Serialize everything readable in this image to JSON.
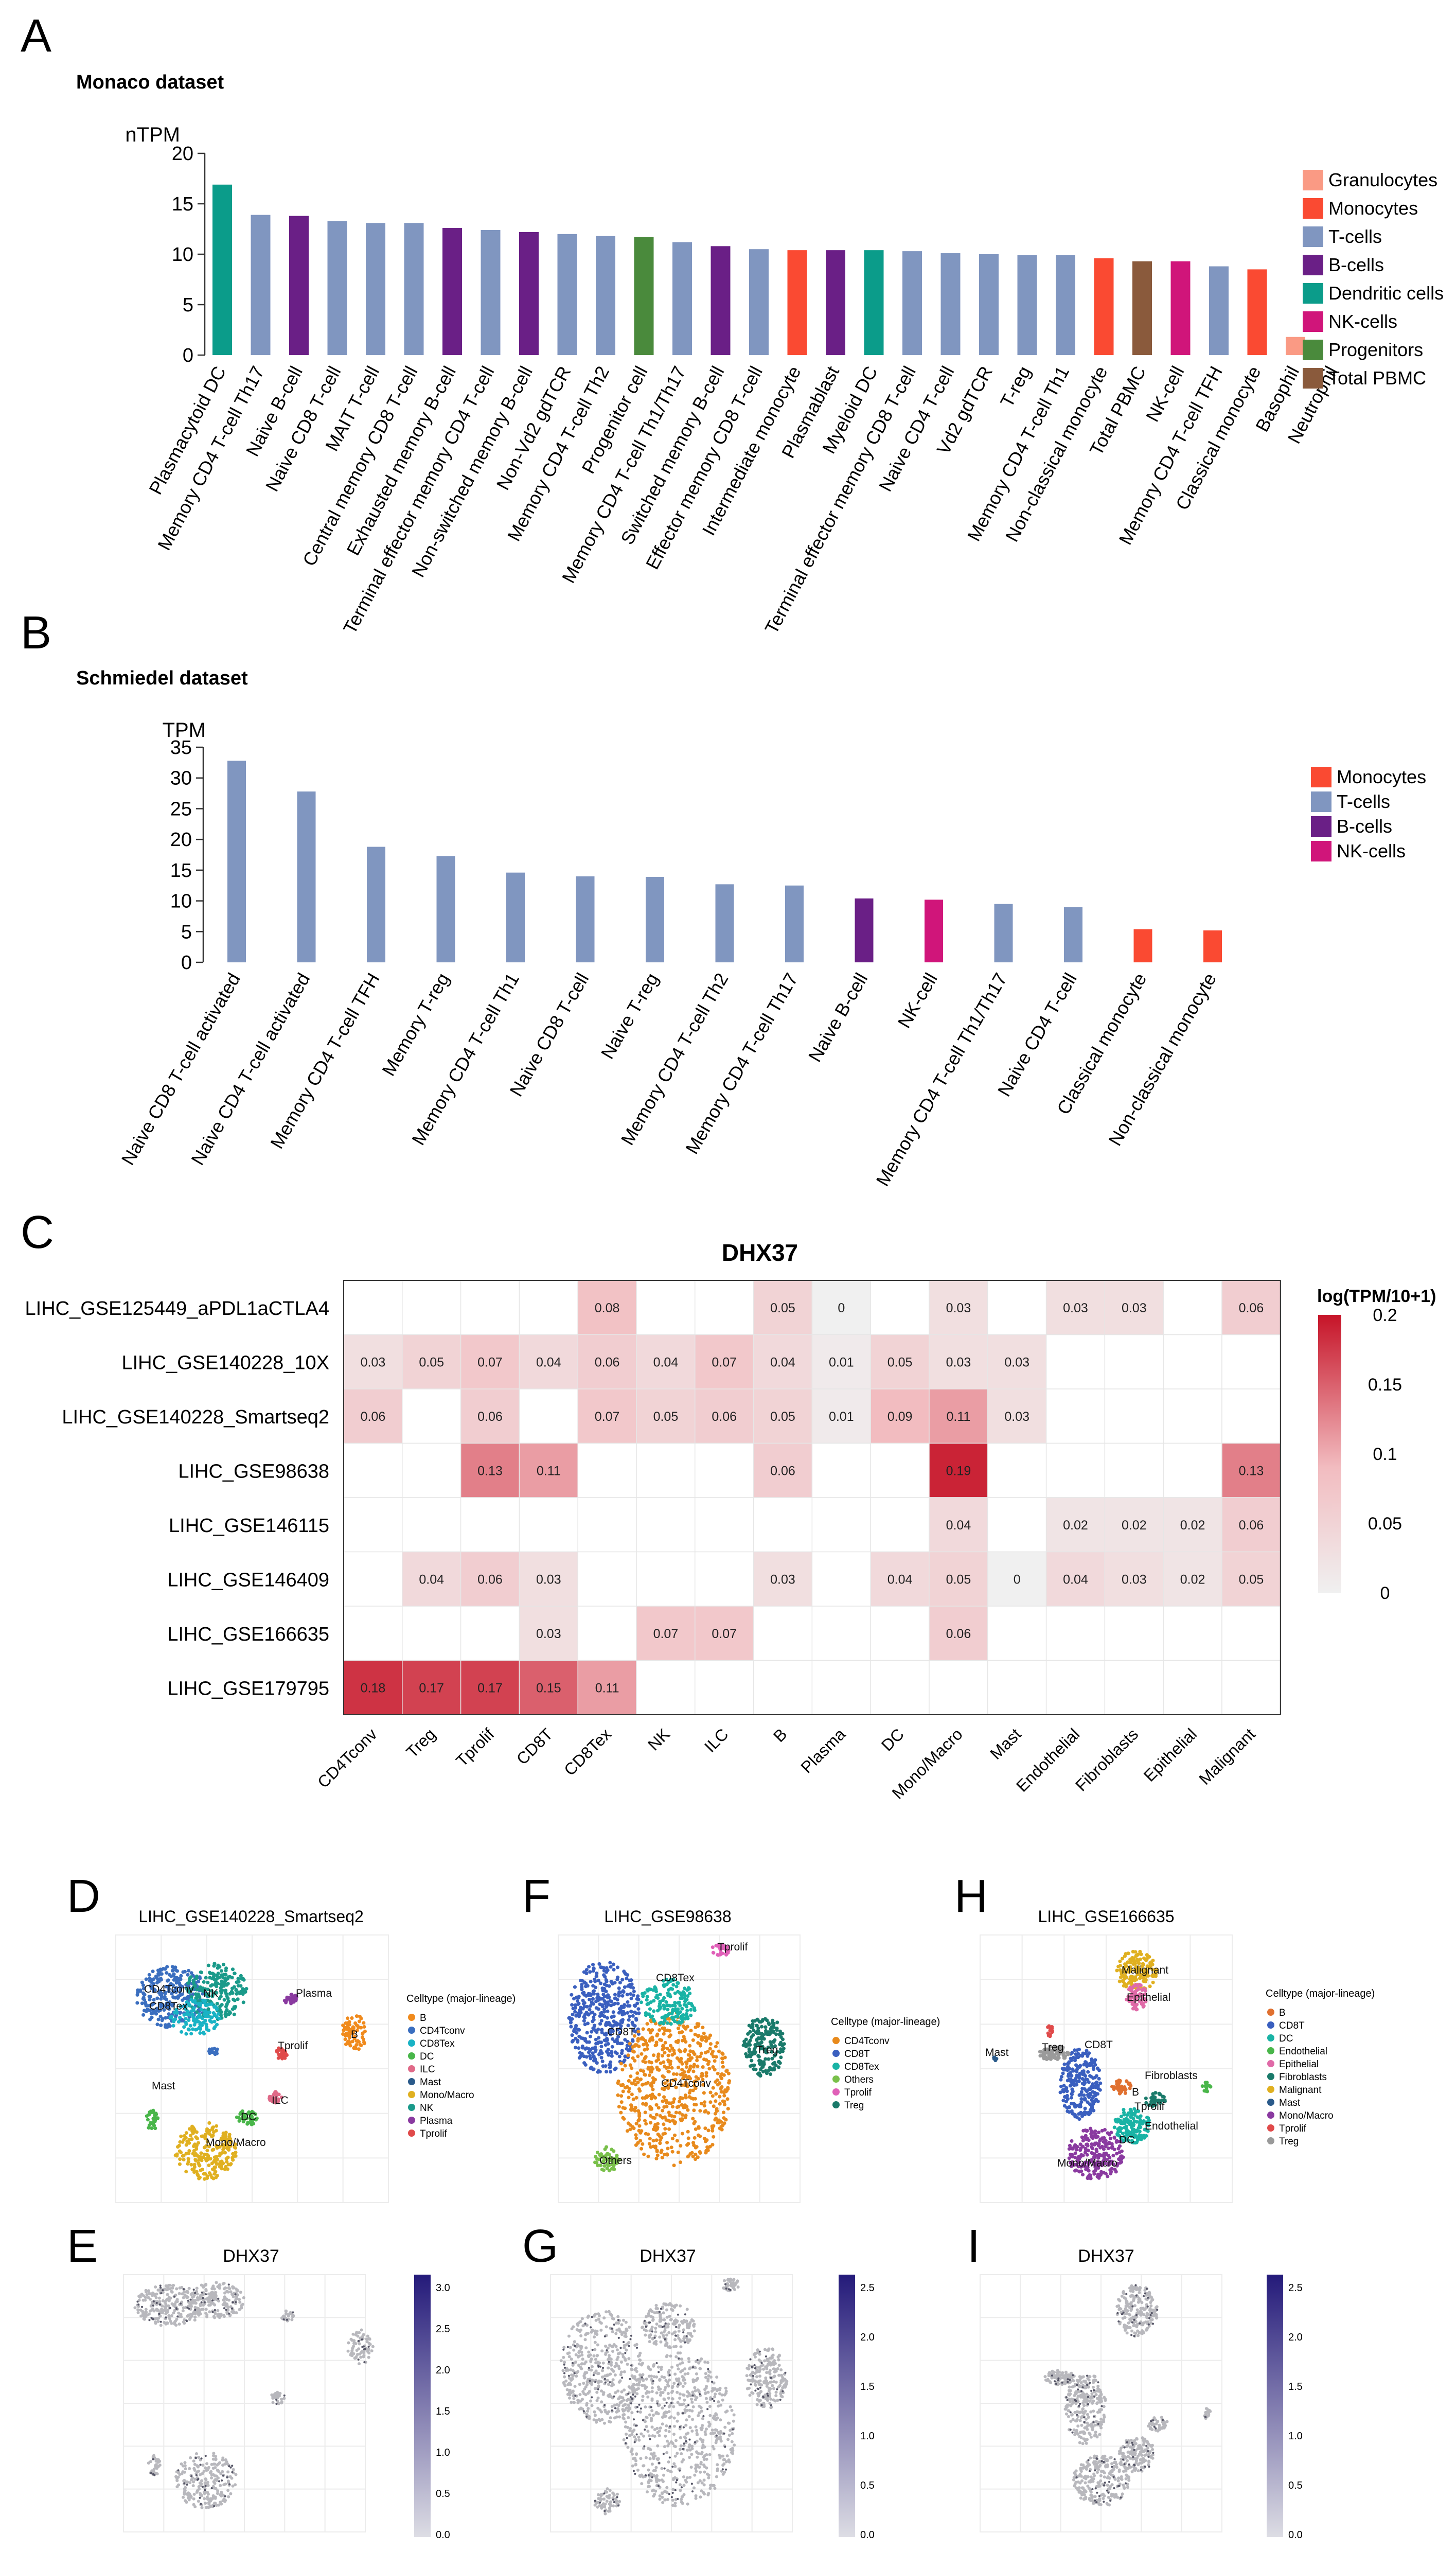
{
  "colors": {
    "Granulocytes": "#fa9a84",
    "Monocytes": "#fa4a32",
    "T-cells": "#8096c0",
    "B-cells": "#6a1f86",
    "Dendritic cells": "#0b9c8a",
    "NK-cells": "#d0157a",
    "Progenitors": "#4a8a3c",
    "Total PBMC": "#8a5a3c"
  },
  "panels": {
    "A": "A",
    "B": "B",
    "C": "C",
    "D": "D",
    "E": "E",
    "F": "F",
    "G": "G",
    "H": "H",
    "I": "I"
  },
  "chart_data": [
    {
      "id": "A",
      "type": "bar",
      "title": "Monaco dataset",
      "ylabel": "nTPM",
      "ylim": [
        0,
        20
      ],
      "yticks": [
        0,
        5,
        10,
        15,
        20
      ],
      "legend": [
        "Granulocytes",
        "Monocytes",
        "T-cells",
        "B-cells",
        "Dendritic cells",
        "NK-cells",
        "Progenitors",
        "Total PBMC"
      ],
      "categories": [
        "Plasmacytoid DC",
        "Memory CD4 T-cell Th17",
        "Naive B-cell",
        "Naive CD8 T-cell",
        "MAIT T-cell",
        "Central memory CD8 T-cell",
        "Exhausted memory B-cell",
        "Terminal effector memory CD4 T-cell",
        "Non-switched memory B-cell",
        "Non-Vd2 gdTCR",
        "Memory CD4 T-cell Th2",
        "Progenitor cell",
        "Memory CD4 T-cell Th1/Th17",
        "Switched memory B-cell",
        "Effector memory CD8 T-cell",
        "Intermediate monocyte",
        "Plasmablast",
        "Myeloid DC",
        "Terminal effector memory CD8 T-cell",
        "Naive CD4 T-cell",
        "Vd2 gdTCR",
        "T-reg",
        "Memory CD4 T-cell Th1",
        "Non-classical monocyte",
        "Total PBMC",
        "NK-cell",
        "Memory CD4 T-cell TFH",
        "Classical monocyte",
        "Basophil",
        "Neutrophil"
      ],
      "values": [
        16.9,
        13.9,
        13.8,
        13.3,
        13.1,
        13.1,
        12.6,
        12.4,
        12.2,
        12.0,
        11.8,
        11.7,
        11.2,
        10.8,
        10.5,
        10.4,
        10.4,
        10.4,
        10.3,
        10.1,
        10.0,
        9.9,
        9.9,
        9.6,
        9.3,
        9.3,
        8.8,
        8.5,
        1.8,
        0.0
      ],
      "groups": [
        "Dendritic cells",
        "T-cells",
        "B-cells",
        "T-cells",
        "T-cells",
        "T-cells",
        "B-cells",
        "T-cells",
        "B-cells",
        "T-cells",
        "T-cells",
        "Progenitors",
        "T-cells",
        "B-cells",
        "T-cells",
        "Monocytes",
        "B-cells",
        "Dendritic cells",
        "T-cells",
        "T-cells",
        "T-cells",
        "T-cells",
        "T-cells",
        "Monocytes",
        "Total PBMC",
        "NK-cells",
        "T-cells",
        "Monocytes",
        "Granulocytes",
        "Granulocytes"
      ]
    },
    {
      "id": "B",
      "type": "bar",
      "title": "Schmiedel dataset",
      "ylabel": "TPM",
      "ylim": [
        0,
        35
      ],
      "yticks": [
        0,
        5,
        10,
        15,
        20,
        25,
        30,
        35
      ],
      "legend": [
        "Monocytes",
        "T-cells",
        "B-cells",
        "NK-cells"
      ],
      "categories": [
        "Naive CD8 T-cell activated",
        "Naive CD4 T-cell activated",
        "Memory CD4 T-cell TFH",
        "Memory T-reg",
        "Memory CD4 T-cell Th1",
        "Naive CD8 T-cell",
        "Naive T-reg",
        "Memory CD4 T-cell Th2",
        "Memory CD4 T-cell Th17",
        "Naive B-cell",
        "NK-cell",
        "Memory CD4 T-cell Th1/Th17",
        "Naive CD4 T-cell",
        "Classical monocyte",
        "Non-classical monocyte"
      ],
      "values": [
        32.8,
        27.8,
        18.8,
        17.3,
        14.6,
        14.0,
        13.9,
        12.7,
        12.5,
        10.4,
        10.2,
        9.5,
        9.0,
        5.4,
        5.2
      ],
      "groups": [
        "T-cells",
        "T-cells",
        "T-cells",
        "T-cells",
        "T-cells",
        "T-cells",
        "T-cells",
        "T-cells",
        "T-cells",
        "B-cells",
        "NK-cells",
        "T-cells",
        "T-cells",
        "Monocytes",
        "Monocytes"
      ]
    },
    {
      "id": "C",
      "type": "heatmap",
      "title": "DHX37",
      "legend_title": "log(TPM/10+1)",
      "legend_ticks": [
        "0.2",
        "0.15",
        "0.1",
        "0.05",
        "0"
      ],
      "vmax": 0.2,
      "rows": [
        "LIHC_GSE125449_aPDL1aCTLA4",
        "LIHC_GSE140228_10X",
        "LIHC_GSE140228_Smartseq2",
        "LIHC_GSE98638",
        "LIHC_GSE146115",
        "LIHC_GSE146409",
        "LIHC_GSE166635",
        "LIHC_GSE179795"
      ],
      "columns": [
        "CD4Tconv",
        "Treg",
        "Tprolif",
        "CD8T",
        "CD8Tex",
        "NK",
        "ILC",
        "B",
        "Plasma",
        "DC",
        "Mono/Macro",
        "Mast",
        "Endothelial",
        "Fibroblasts",
        "Epithelial",
        "Malignant"
      ],
      "values": [
        [
          null,
          null,
          null,
          null,
          0.08,
          null,
          null,
          0.05,
          0,
          null,
          0.03,
          null,
          0.03,
          0.03,
          null,
          0.06
        ],
        [
          0.03,
          0.05,
          0.07,
          0.04,
          0.06,
          0.04,
          0.07,
          0.04,
          0.01,
          0.05,
          0.03,
          0.03,
          null,
          null,
          null,
          null
        ],
        [
          0.06,
          null,
          0.06,
          null,
          0.07,
          0.05,
          0.06,
          0.05,
          0.01,
          0.09,
          0.11,
          0.03,
          null,
          null,
          null,
          null
        ],
        [
          null,
          null,
          0.13,
          0.11,
          null,
          null,
          null,
          0.06,
          null,
          null,
          0.19,
          null,
          null,
          null,
          null,
          0.13
        ],
        [
          null,
          null,
          null,
          null,
          null,
          null,
          null,
          null,
          null,
          null,
          0.04,
          null,
          0.02,
          0.02,
          0.02,
          0.06
        ],
        [
          null,
          0.04,
          0.06,
          0.03,
          null,
          null,
          null,
          0.03,
          null,
          0.04,
          0.05,
          0,
          0.04,
          0.03,
          0.02,
          0.05
        ],
        [
          null,
          null,
          null,
          0.03,
          null,
          0.07,
          0.07,
          null,
          null,
          null,
          0.06,
          null,
          null,
          null,
          null,
          null
        ],
        [
          0.18,
          0.17,
          0.17,
          0.15,
          0.11,
          null,
          null,
          null,
          null,
          null,
          null,
          null,
          null,
          null,
          null,
          null
        ]
      ]
    }
  ],
  "umaps": {
    "D": {
      "title": "LIHC_GSE140228_Smartseq2",
      "legend_title": "Celltype (major-lineage)",
      "legend": [
        "B",
        "CD4Tconv",
        "CD8Tex",
        "DC",
        "ILC",
        "Mast",
        "Mono/Macro",
        "NK",
        "Plasma",
        "Tprolif"
      ],
      "legend_colors": [
        "#f08a1c",
        "#3a6ebf",
        "#19b3c5",
        "#49b64a",
        "#e06a88",
        "#2a5a8a",
        "#e0b020",
        "#1a9a8a",
        "#8a3aa0",
        "#e04a4a"
      ],
      "labels": [
        "CD4Tconv",
        "CD8Tex",
        "NK",
        "Plasma",
        "Tprolif",
        "B",
        "Mast",
        "ILC",
        "DC",
        "Mono/Macro"
      ]
    },
    "F": {
      "title": "LIHC_GSE98638",
      "legend_title": "Celltype (major-lineage)",
      "legend": [
        "CD4Tconv",
        "CD8T",
        "CD8Tex",
        "Others",
        "Tprolif",
        "Treg"
      ],
      "legend_colors": [
        "#e88a1c",
        "#3a5fbf",
        "#19b3a5",
        "#79c04a",
        "#e060b8",
        "#1a7a6a"
      ],
      "labels": [
        "Tprolif",
        "CD8Tex",
        "CD8T",
        "Treg",
        "CD4Tconv",
        "Others"
      ]
    },
    "H": {
      "title": "LIHC_GSE166635",
      "legend_title": "Celltype (major-lineage)",
      "legend": [
        "B",
        "CD8T",
        "DC",
        "Endothelial",
        "Epithelial",
        "Fibroblasts",
        "Malignant",
        "Mast",
        "Mono/Macro",
        "Tprolif",
        "Treg"
      ],
      "legend_colors": [
        "#e07030",
        "#3a5fbf",
        "#19b3a5",
        "#49b64a",
        "#e06aa8",
        "#1a7a6a",
        "#e0b020",
        "#2a5a8a",
        "#8a3aa0",
        "#e04a4a",
        "#9a9a9a"
      ],
      "labels": [
        "Malignant",
        "Epithelial",
        "Mast",
        "Treg",
        "CD8T",
        "Fibroblasts",
        "B",
        "Tprolif",
        "Endothelial",
        "Mono/Macro",
        "DC"
      ]
    },
    "E": {
      "title": "DHX37",
      "scale": [
        "3.0",
        "2.5",
        "2.0",
        "1.5",
        "1.0",
        "0.5",
        "0.0"
      ]
    },
    "G": {
      "title": "DHX37",
      "scale": [
        "2.5",
        "2.0",
        "1.5",
        "1.0",
        "0.5",
        "0.0"
      ]
    },
    "I": {
      "title": "DHX37",
      "scale": [
        "2.5",
        "2.0",
        "1.5",
        "1.0",
        "0.5",
        "0.0"
      ]
    }
  }
}
